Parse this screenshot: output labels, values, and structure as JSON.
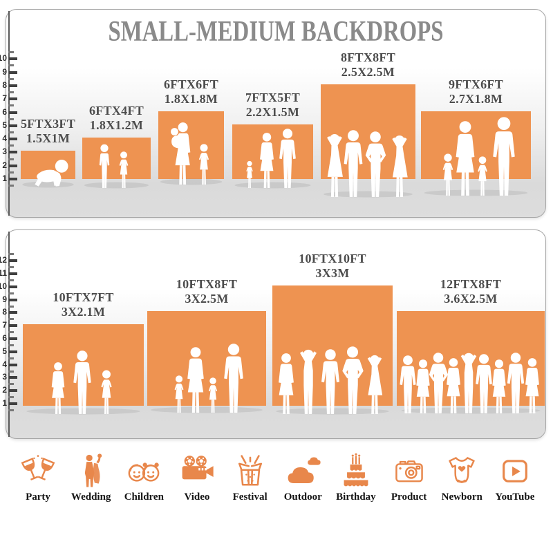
{
  "title": "SMALL-MEDIUM BACKDROPS",
  "accent_color": "#EE9351",
  "title_color": "#8A8A8A",
  "chart_data": [
    {
      "type": "bar",
      "title": "SMALL-MEDIUM BACKDROPS",
      "ylim": [
        0,
        10.5
      ],
      "yticks": [
        1,
        2,
        3,
        4,
        5,
        6,
        7,
        8,
        9,
        10
      ],
      "grid": false,
      "legend": "none",
      "bar_color": "#EE9351",
      "bars": [
        {
          "size_ft": "5FTX3FT",
          "size_m": "1.5X1M",
          "width_ft": 5,
          "height_ft": 3,
          "people": [
            "crawling-baby"
          ]
        },
        {
          "size_ft": "6FTX4FT",
          "size_m": "1.8X1.2M",
          "width_ft": 6,
          "height_ft": 4,
          "people": [
            "boy",
            "girl"
          ]
        },
        {
          "size_ft": "6FTX6FT",
          "size_m": "1.8X1.8M",
          "width_ft": 6,
          "height_ft": 6,
          "people": [
            "mother-carrying-baby",
            "girl"
          ]
        },
        {
          "size_ft": "7FTX5FT",
          "size_m": "2.2X1.5M",
          "width_ft": 7,
          "height_ft": 5,
          "people": [
            "toddler-girl",
            "woman",
            "man"
          ]
        },
        {
          "size_ft": "8FTX8FT",
          "size_m": "2.5X2.5M",
          "width_ft": 8,
          "height_ft": 8,
          "people": [
            "woman-arms-up",
            "man",
            "man-hands-on-hips",
            "woman-arms-up"
          ]
        },
        {
          "size_ft": "9FTX6FT",
          "size_m": "2.7X1.8M",
          "width_ft": 9,
          "height_ft": 6,
          "people": [
            "girl",
            "woman",
            "girl",
            "man"
          ]
        }
      ]
    },
    {
      "type": "bar",
      "ylim": [
        0,
        12.5
      ],
      "yticks": [
        1,
        2,
        3,
        4,
        5,
        6,
        7,
        8,
        9,
        10,
        11,
        12
      ],
      "grid": false,
      "legend": "none",
      "bar_color": "#EE9351",
      "bars": [
        {
          "size_ft": "10FTX7FT",
          "size_m": "3X2.1M",
          "width_ft": 10,
          "height_ft": 7,
          "people": [
            "woman",
            "man",
            "girl"
          ]
        },
        {
          "size_ft": "10FTX8FT",
          "size_m": "3X2.5M",
          "width_ft": 10,
          "height_ft": 8,
          "people": [
            "girl",
            "woman",
            "girl",
            "man"
          ]
        },
        {
          "size_ft": "10FTX10FT",
          "size_m": "3X3M",
          "width_ft": 10,
          "height_ft": 10,
          "people": [
            "woman",
            "man-arms-up",
            "man",
            "man-hands-on-hips",
            "woman-arms-up"
          ]
        },
        {
          "size_ft": "12FTX8FT",
          "size_m": "3.6X2.5M",
          "width_ft": 12,
          "height_ft": 8,
          "people": [
            "man",
            "woman",
            "man-hands-on-hips",
            "woman",
            "man-arms-up",
            "man",
            "woman",
            "man",
            "woman"
          ]
        }
      ]
    }
  ],
  "categories_row": [
    {
      "icon": "party-icon",
      "label": "Party"
    },
    {
      "icon": "wedding-icon",
      "label": "Wedding"
    },
    {
      "icon": "children-icon",
      "label": "Children"
    },
    {
      "icon": "video-icon",
      "label": "Video"
    },
    {
      "icon": "festival-icon",
      "label": "Festival"
    },
    {
      "icon": "outdoor-icon",
      "label": "Outdoor"
    },
    {
      "icon": "birthday-icon",
      "label": "Birthday"
    },
    {
      "icon": "product-icon",
      "label": "Product"
    },
    {
      "icon": "newborn-icon",
      "label": "Newborn"
    },
    {
      "icon": "youtube-icon",
      "label": "YouTube"
    }
  ]
}
